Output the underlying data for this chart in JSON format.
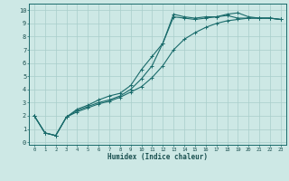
{
  "title": "",
  "xlabel": "Humidex (Indice chaleur)",
  "ylabel": "",
  "xlim": [
    -0.5,
    23.5
  ],
  "ylim": [
    -0.2,
    10.5
  ],
  "xticks": [
    0,
    1,
    2,
    3,
    4,
    5,
    6,
    7,
    8,
    9,
    10,
    11,
    12,
    13,
    14,
    15,
    16,
    17,
    18,
    19,
    20,
    21,
    22,
    23
  ],
  "yticks": [
    0,
    1,
    2,
    3,
    4,
    5,
    6,
    7,
    8,
    9,
    10
  ],
  "background_color": "#cde8e5",
  "grid_color": "#a8ceca",
  "line_color": "#1a6b6b",
  "line1_x": [
    0,
    1,
    2,
    3,
    4,
    5,
    6,
    7,
    8,
    9,
    10,
    11,
    12,
    13,
    14,
    15,
    16,
    17,
    18,
    19,
    20,
    21,
    22,
    23
  ],
  "line1_y": [
    2.0,
    0.7,
    0.5,
    1.9,
    2.5,
    2.8,
    3.2,
    3.5,
    3.7,
    4.3,
    5.5,
    6.5,
    7.5,
    9.7,
    9.5,
    9.4,
    9.5,
    9.5,
    9.7,
    9.8,
    9.5,
    9.4,
    9.4,
    9.3
  ],
  "line2_x": [
    0,
    1,
    2,
    3,
    4,
    5,
    6,
    7,
    8,
    9,
    10,
    11,
    12,
    13,
    14,
    15,
    16,
    17,
    18,
    19,
    20,
    21,
    22,
    23
  ],
  "line2_y": [
    2.0,
    0.7,
    0.5,
    1.9,
    2.4,
    2.7,
    3.0,
    3.2,
    3.5,
    4.0,
    4.8,
    5.8,
    7.5,
    9.5,
    9.4,
    9.3,
    9.4,
    9.5,
    9.6,
    9.4,
    9.4,
    9.4,
    9.4,
    9.3
  ],
  "line3_x": [
    0,
    1,
    2,
    3,
    4,
    5,
    6,
    7,
    8,
    9,
    10,
    11,
    12,
    13,
    14,
    15,
    16,
    17,
    18,
    19,
    20,
    21,
    22,
    23
  ],
  "line3_y": [
    2.0,
    0.7,
    0.5,
    1.9,
    2.3,
    2.6,
    2.9,
    3.1,
    3.4,
    3.8,
    4.2,
    4.9,
    5.8,
    7.0,
    7.8,
    8.3,
    8.7,
    9.0,
    9.2,
    9.3,
    9.4,
    9.4,
    9.4,
    9.3
  ],
  "xlabel_fontsize": 5.5,
  "xtick_fontsize": 4.0,
  "ytick_fontsize": 5.0,
  "linewidth": 0.8,
  "marker_size": 2.8,
  "marker_ew": 0.7
}
